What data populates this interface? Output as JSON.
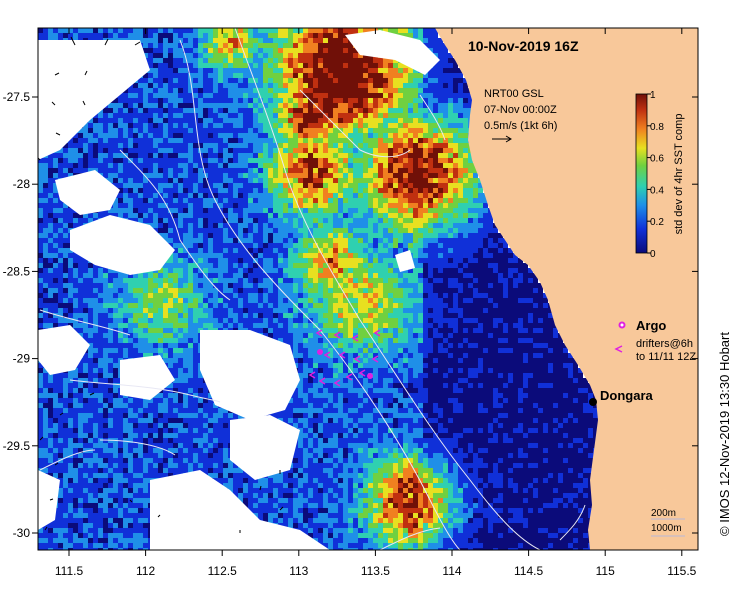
{
  "title": "10-Nov-2019 16Z",
  "current_info": {
    "line1": "NRT00 GSL",
    "line2": "07-Nov 00:00Z",
    "line3": "0.5m/s (1kt 6h)"
  },
  "colorbar": {
    "label": "std dev of 4hr SST comp",
    "ticks": [
      "0",
      "0.2",
      "0.4",
      "0.6",
      "0.8",
      "1"
    ],
    "colors": [
      "#0b0b7a",
      "#1030d8",
      "#1f8fe8",
      "#2fd0b0",
      "#70d040",
      "#e8e020",
      "#f08020",
      "#c03010",
      "#701008"
    ]
  },
  "legend": {
    "argo": "Argo",
    "drifters_line1": "drifters@6h",
    "drifters_line2": "to 11/11 12Z",
    "depth_200": "200m",
    "depth_1000": "1000m"
  },
  "place": {
    "name": "Dongara"
  },
  "axes": {
    "x_ticks": [
      "111.5",
      "112",
      "112.5",
      "113",
      "113.5",
      "114",
      "114.5",
      "115",
      "115.5"
    ],
    "y_ticks": [
      "-27.5",
      "-28",
      "-28.5",
      "-29",
      "-29.5",
      "-30"
    ]
  },
  "credit": "© IMOS 12-Nov-2019 13:30 Hobart",
  "colors": {
    "land": "#f8c89a",
    "ocean_missing": "#ffffff",
    "argo": "#e020e0",
    "contour": "#e0e0f0"
  }
}
